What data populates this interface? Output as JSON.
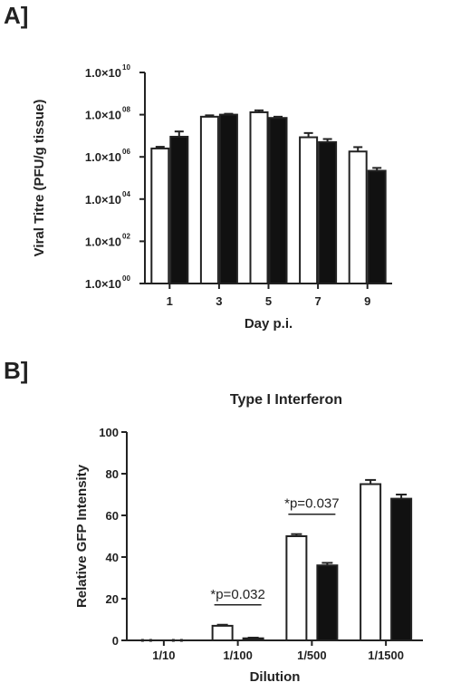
{
  "panels": {
    "a": {
      "label": "A]"
    },
    "b": {
      "label": "B]"
    }
  },
  "colors": {
    "open_bar": "#ffffff",
    "filled_bar": "#111111",
    "axis": "#222222"
  },
  "chart_data": [
    {
      "type": "bar",
      "title": "",
      "xlabel": "Day p.i.",
      "ylabel": "Viral Titre (PFU/g tissue)",
      "yscale": "log",
      "ylim": [
        1,
        10000000000
      ],
      "yticks": [
        {
          "base": "1.0×10",
          "exp": "00",
          "value": 1
        },
        {
          "base": "1.0×10",
          "exp": "02",
          "value": 100
        },
        {
          "base": "1.0×10",
          "exp": "04",
          "value": 10000
        },
        {
          "base": "1.0×10",
          "exp": "06",
          "value": 1000000
        },
        {
          "base": "1.0×10",
          "exp": "08",
          "value": 100000000
        },
        {
          "base": "1.0×10",
          "exp": "10",
          "value": 10000000000
        }
      ],
      "categories": [
        "1",
        "3",
        "5",
        "7",
        "9"
      ],
      "series": [
        {
          "fill": "open",
          "values": [
            2500000,
            80000000,
            130000000,
            8500000,
            1800000
          ],
          "errors": [
            500000,
            13000000,
            30000000,
            5000000,
            1100000
          ]
        },
        {
          "fill": "filled",
          "values": [
            9000000,
            100000000,
            70000000,
            5000000,
            220000
          ],
          "errors": [
            7000000,
            10000000,
            10000000,
            2000000,
            80000
          ]
        }
      ],
      "grid": false,
      "legend": "none"
    },
    {
      "type": "bar",
      "title": "Type I Interferon",
      "xlabel": "Dilution",
      "ylabel": "Relative GFP Intensity",
      "ylim": [
        0,
        100
      ],
      "yticks": [
        "0",
        "20",
        "40",
        "60",
        "80",
        "100"
      ],
      "categories": [
        "1/10",
        "1/100",
        "1/500",
        "1/1500"
      ],
      "series": [
        {
          "fill": "open",
          "values": [
            0,
            7,
            50,
            75
          ],
          "errors": [
            0,
            0.5,
            1,
            2
          ]
        },
        {
          "fill": "filled",
          "values": [
            0,
            1,
            36,
            68
          ],
          "errors": [
            0,
            0.3,
            1.2,
            2
          ]
        }
      ],
      "annotations": [
        {
          "text": "*p=0.032",
          "category_index": 1
        },
        {
          "text": "*p=0.037",
          "category_index": 2
        }
      ],
      "grid": false,
      "legend": "none"
    }
  ]
}
